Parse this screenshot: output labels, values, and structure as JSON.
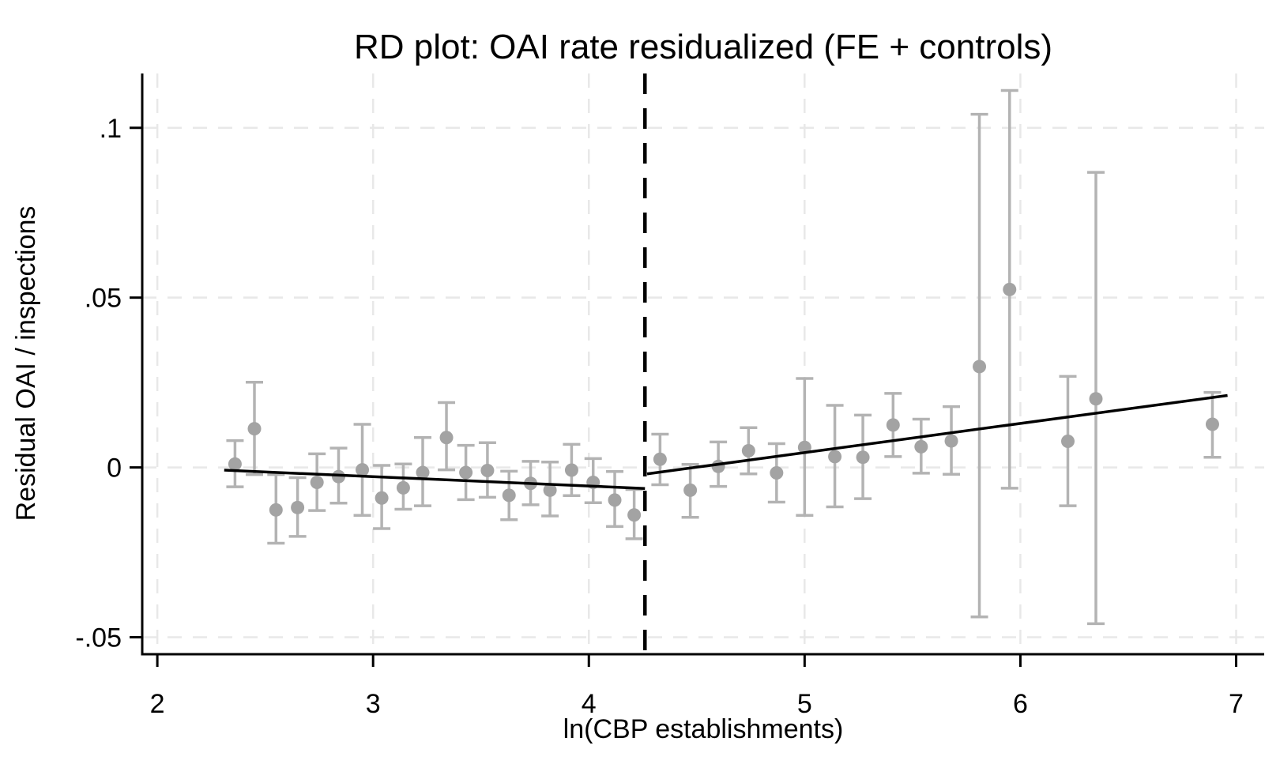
{
  "chart_data": {
    "type": "scatter",
    "subtype": "rd-binned-scatter-with-ci",
    "title": "RD plot: OAI rate residualized (FE + controls)",
    "xlabel": "ln(CBP establishments)",
    "ylabel": "Residual OAI / inspections",
    "xlim": [
      1.93,
      7.13
    ],
    "ylim": [
      -0.055,
      0.116
    ],
    "x_ticks": [
      2,
      3,
      4,
      5,
      6,
      7
    ],
    "x_tick_labels": [
      "2",
      "3",
      "4",
      "5",
      "6",
      "7"
    ],
    "y_ticks": [
      -0.05,
      0,
      0.05,
      0.1
    ],
    "y_tick_labels": [
      "-.05",
      "0",
      ".05",
      ".1"
    ],
    "grid": true,
    "legend": "none",
    "cutoff_x": 4.26,
    "points": [
      {
        "x": 2.36,
        "y": 0.001,
        "lo": -0.0057,
        "hi": 0.0079
      },
      {
        "x": 2.45,
        "y": 0.0114,
        "lo": -0.0021,
        "hi": 0.0251
      },
      {
        "x": 2.55,
        "y": -0.0125,
        "lo": -0.0223,
        "hi": -0.0021
      },
      {
        "x": 2.65,
        "y": -0.0118,
        "lo": -0.0203,
        "hi": -0.003
      },
      {
        "x": 2.74,
        "y": -0.0044,
        "lo": -0.0127,
        "hi": 0.004
      },
      {
        "x": 2.84,
        "y": -0.0027,
        "lo": -0.0105,
        "hi": 0.0057
      },
      {
        "x": 2.95,
        "y": -0.0007,
        "lo": -0.0141,
        "hi": 0.0127
      },
      {
        "x": 3.04,
        "y": -0.009,
        "lo": -0.018,
        "hi": 0.0006
      },
      {
        "x": 3.14,
        "y": -0.006,
        "lo": -0.0123,
        "hi": 0.001
      },
      {
        "x": 3.23,
        "y": -0.0015,
        "lo": -0.0113,
        "hi": 0.0088
      },
      {
        "x": 3.34,
        "y": 0.0088,
        "lo": -0.0007,
        "hi": 0.0191
      },
      {
        "x": 3.43,
        "y": -0.0015,
        "lo": -0.0095,
        "hi": 0.0065
      },
      {
        "x": 3.53,
        "y": -0.0009,
        "lo": -0.0088,
        "hi": 0.0073
      },
      {
        "x": 3.63,
        "y": -0.0082,
        "lo": -0.0154,
        "hi": -0.0011
      },
      {
        "x": 3.73,
        "y": -0.0047,
        "lo": -0.011,
        "hi": 0.0018
      },
      {
        "x": 3.82,
        "y": -0.0067,
        "lo": -0.0143,
        "hi": 0.0016
      },
      {
        "x": 3.92,
        "y": -0.0008,
        "lo": -0.0083,
        "hi": 0.0068
      },
      {
        "x": 4.02,
        "y": -0.0044,
        "lo": -0.0104,
        "hi": 0.0026
      },
      {
        "x": 4.12,
        "y": -0.0096,
        "lo": -0.0174,
        "hi": -0.0012
      },
      {
        "x": 4.21,
        "y": -0.014,
        "lo": -0.021,
        "hi": -0.0065
      },
      {
        "x": 4.33,
        "y": 0.0024,
        "lo": -0.0051,
        "hi": 0.0098
      },
      {
        "x": 4.47,
        "y": -0.0067,
        "lo": -0.0147,
        "hi": 0.0009
      },
      {
        "x": 4.6,
        "y": 0.0003,
        "lo": -0.0056,
        "hi": 0.0075
      },
      {
        "x": 4.74,
        "y": 0.0049,
        "lo": -0.0019,
        "hi": 0.0117
      },
      {
        "x": 4.87,
        "y": -0.0016,
        "lo": -0.0102,
        "hi": 0.007
      },
      {
        "x": 5.0,
        "y": 0.0059,
        "lo": -0.0141,
        "hi": 0.0262
      },
      {
        "x": 5.14,
        "y": 0.0032,
        "lo": -0.0116,
        "hi": 0.0183
      },
      {
        "x": 5.27,
        "y": 0.003,
        "lo": -0.0092,
        "hi": 0.0154
      },
      {
        "x": 5.41,
        "y": 0.0125,
        "lo": 0.0032,
        "hi": 0.0218
      },
      {
        "x": 5.54,
        "y": 0.0061,
        "lo": -0.0017,
        "hi": 0.0142
      },
      {
        "x": 5.68,
        "y": 0.0078,
        "lo": -0.002,
        "hi": 0.0179
      },
      {
        "x": 5.81,
        "y": 0.0297,
        "lo": -0.044,
        "hi": 0.104
      },
      {
        "x": 5.95,
        "y": 0.0524,
        "lo": -0.0061,
        "hi": 0.111
      },
      {
        "x": 6.22,
        "y": 0.0077,
        "lo": -0.0113,
        "hi": 0.0268
      },
      {
        "x": 6.35,
        "y": 0.0202,
        "lo": -0.046,
        "hi": 0.0869
      },
      {
        "x": 6.89,
        "y": 0.0127,
        "lo": 0.003,
        "hi": 0.0221
      }
    ],
    "fit_lines": [
      {
        "name": "left-of-cutoff",
        "x1": 2.31,
        "y1": -0.0008,
        "x2": 4.26,
        "y2": -0.0062
      },
      {
        "name": "right-of-cutoff",
        "x1": 4.27,
        "y1": -0.0019,
        "x2": 6.96,
        "y2": 0.0212
      }
    ],
    "colors": {
      "background": "#ffffff",
      "marker": "#a3a3a3",
      "ci_bar": "#b3b3b3",
      "fit_line": "#000000",
      "cutoff_line": "#000000",
      "gridline": "#e8e8e8",
      "axis": "#000000",
      "text": "#000000"
    }
  }
}
